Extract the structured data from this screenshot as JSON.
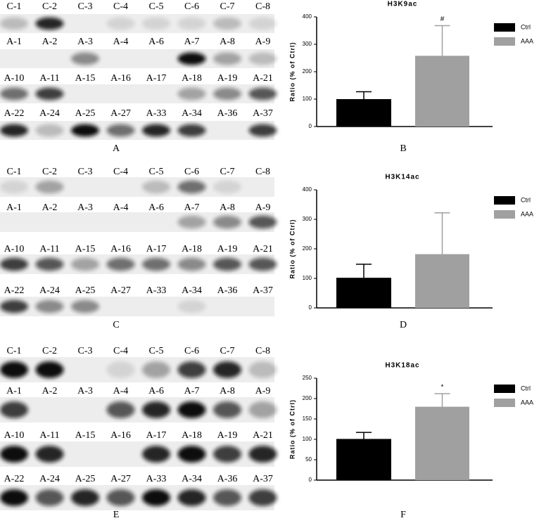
{
  "blots": [
    {
      "label": "A",
      "rows": [
        [
          "C-1",
          "C-2",
          "C-3",
          "C-4",
          "C-5",
          "C-6",
          "C-7",
          "C-8"
        ],
        [
          "A-1",
          "A-2",
          "A-3",
          "A-4",
          "A-6",
          "A-7",
          "A-8",
          "A-9"
        ],
        [
          "A-10",
          "A-11",
          "A-15",
          "A-16",
          "A-17",
          "A-18",
          "A-19",
          "A-21"
        ],
        [
          "A-22",
          "A-24",
          "A-25",
          "A-27",
          "A-33",
          "A-34",
          "A-36",
          "A-37"
        ]
      ]
    },
    {
      "label": "C",
      "rows": [
        [
          "C-1",
          "C-2",
          "C-3",
          "C-4",
          "C-5",
          "C-6",
          "C-7",
          "C-8"
        ],
        [
          "A-1",
          "A-2",
          "A-3",
          "A-4",
          "A-6",
          "A-7",
          "A-8",
          "A-9"
        ],
        [
          "A-10",
          "A-11",
          "A-15",
          "A-16",
          "A-17",
          "A-18",
          "A-19",
          "A-21"
        ],
        [
          "A-22",
          "A-24",
          "A-25",
          "A-27",
          "A-33",
          "A-34",
          "A-36",
          "A-37"
        ]
      ]
    },
    {
      "label": "E",
      "rows": [
        [
          "C-1",
          "C-2",
          "C-3",
          "C-4",
          "C-5",
          "C-6",
          "C-7",
          "C-8"
        ],
        [
          "A-1",
          "A-2",
          "A-3",
          "A-4",
          "A-6",
          "A-7",
          "A-8",
          "A-9"
        ],
        [
          "A-10",
          "A-11",
          "A-15",
          "A-16",
          "A-17",
          "A-18",
          "A-19",
          "A-21"
        ],
        [
          "A-22",
          "A-24",
          "A-25",
          "A-27",
          "A-33",
          "A-34",
          "A-36",
          "A-37"
        ]
      ]
    }
  ],
  "chart_data": [
    {
      "type": "bar",
      "title": "H3K9ac",
      "panel_label": "B",
      "y_label": "Ratio (% of Ctrl)",
      "ylim": [
        0,
        400
      ],
      "yticks": [
        0,
        100,
        200,
        300,
        400
      ],
      "series": [
        {
          "name": "Ctrl",
          "color": "#000000",
          "values": [
            100
          ],
          "errors": [
            27
          ]
        },
        {
          "name": "AAA",
          "color": "#a0a0a0",
          "values": [
            258
          ],
          "errors": [
            110
          ],
          "annotation": "#"
        }
      ]
    },
    {
      "type": "bar",
      "title": "H3K14ac",
      "panel_label": "D",
      "y_label": "Ratio (% of Ctrl)",
      "ylim": [
        0,
        400
      ],
      "yticks": [
        0,
        100,
        200,
        300,
        400
      ],
      "series": [
        {
          "name": "Ctrl",
          "color": "#000000",
          "values": [
            102
          ],
          "errors": [
            46
          ]
        },
        {
          "name": "AAA",
          "color": "#a0a0a0",
          "values": [
            182
          ],
          "errors": [
            140
          ]
        }
      ]
    },
    {
      "type": "bar",
      "title": "H3K18ac",
      "panel_label": "F",
      "y_label": "Ratio (% of Ctrl)",
      "ylim": [
        0,
        250
      ],
      "yticks": [
        0,
        50,
        100,
        150,
        200,
        250
      ],
      "series": [
        {
          "name": "Ctrl",
          "color": "#000000",
          "values": [
            101
          ],
          "errors": [
            16
          ]
        },
        {
          "name": "AAA",
          "color": "#a0a0a0",
          "values": [
            180
          ],
          "errors": [
            32
          ],
          "annotation": "*"
        }
      ]
    }
  ]
}
